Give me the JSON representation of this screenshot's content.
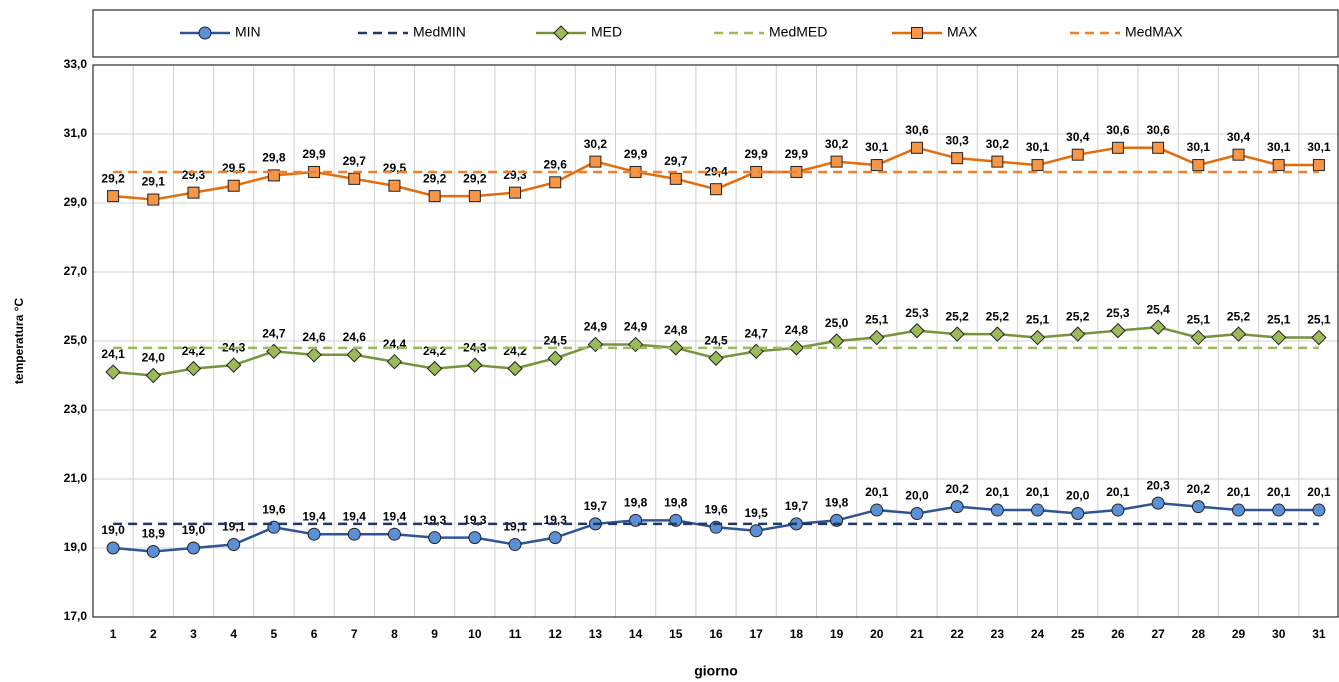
{
  "chart_data": {
    "type": "line",
    "x_label": "giorno",
    "y_label": "temperatura °C",
    "categories": [
      "1",
      "2",
      "3",
      "4",
      "5",
      "6",
      "7",
      "8",
      "9",
      "10",
      "11",
      "12",
      "13",
      "14",
      "15",
      "16",
      "17",
      "18",
      "19",
      "20",
      "21",
      "22",
      "23",
      "24",
      "25",
      "26",
      "27",
      "28",
      "29",
      "30",
      "31"
    ],
    "ylim": [
      17,
      33
    ],
    "yticks": [
      {
        "value": 17,
        "label": "17,0"
      },
      {
        "value": 19,
        "label": "19,0"
      },
      {
        "value": 21,
        "label": "21,0"
      },
      {
        "value": 23,
        "label": "23,0"
      },
      {
        "value": 25,
        "label": "25,0"
      },
      {
        "value": 27,
        "label": "27,0"
      },
      {
        "value": 29,
        "label": "29,0"
      },
      {
        "value": 31,
        "label": "31,0"
      },
      {
        "value": 33,
        "label": "33,0"
      }
    ],
    "grid": true,
    "legend": "top",
    "series": [
      {
        "name": "MIN",
        "color": "#2f5597",
        "marker": "circle",
        "marker_color": "#5b8fd6",
        "values": [
          19.0,
          18.9,
          19.0,
          19.1,
          19.6,
          19.4,
          19.4,
          19.4,
          19.3,
          19.3,
          19.1,
          19.3,
          19.7,
          19.8,
          19.8,
          19.6,
          19.5,
          19.7,
          19.8,
          20.1,
          20.0,
          20.2,
          20.1,
          20.1,
          20.0,
          20.1,
          20.3,
          20.2,
          20.1,
          20.1,
          20.1
        ],
        "value_labels": [
          "19,0",
          "18,9",
          "19,0",
          "19,1",
          "19,6",
          "19,4",
          "19,4",
          "19,4",
          "19,3",
          "19,3",
          "19,1",
          "19,3",
          "19,7",
          "19,8",
          "19,8",
          "19,6",
          "19,5",
          "19,7",
          "19,8",
          "20,1",
          "20,0",
          "20,2",
          "20,1",
          "20,1",
          "20,0",
          "20,1",
          "20,3",
          "20,2",
          "20,1",
          "20,1",
          "20,1"
        ]
      },
      {
        "name": "MedMIN",
        "color": "#1f3864",
        "dashed": true,
        "values": [
          19.7,
          19.7,
          19.7,
          19.7,
          19.7,
          19.7,
          19.7,
          19.7,
          19.7,
          19.7,
          19.7,
          19.7,
          19.7,
          19.7,
          19.7,
          19.7,
          19.7,
          19.7,
          19.7,
          19.7,
          19.7,
          19.7,
          19.7,
          19.7,
          19.7,
          19.7,
          19.7,
          19.7,
          19.7,
          19.7,
          19.7
        ]
      },
      {
        "name": "MED",
        "color": "#77933c",
        "marker": "diamond",
        "marker_color": "#9bbb59",
        "values": [
          24.1,
          24.0,
          24.2,
          24.3,
          24.7,
          24.6,
          24.6,
          24.4,
          24.2,
          24.3,
          24.2,
          24.5,
          24.9,
          24.9,
          24.8,
          24.5,
          24.7,
          24.8,
          25.0,
          25.1,
          25.3,
          25.2,
          25.2,
          25.1,
          25.2,
          25.3,
          25.4,
          25.1,
          25.2,
          25.1,
          25.1
        ],
        "value_labels": [
          "24,1",
          "24,0",
          "24,2",
          "24,3",
          "24,7",
          "24,6",
          "24,6",
          "24,4",
          "24,2",
          "24,3",
          "24,2",
          "24,5",
          "24,9",
          "24,9",
          "24,8",
          "24,5",
          "24,7",
          "24,8",
          "25,0",
          "25,1",
          "25,3",
          "25,2",
          "25,2",
          "25,1",
          "25,2",
          "25,3",
          "25,4",
          "25,1",
          "25,2",
          "25,1",
          "25,1"
        ]
      },
      {
        "name": "MedMED",
        "color": "#9bbb59",
        "dashed": true,
        "values": [
          24.8,
          24.8,
          24.8,
          24.8,
          24.8,
          24.8,
          24.8,
          24.8,
          24.8,
          24.8,
          24.8,
          24.8,
          24.8,
          24.8,
          24.8,
          24.8,
          24.8,
          24.8,
          24.8,
          24.8,
          24.8,
          24.8,
          24.8,
          24.8,
          24.8,
          24.8,
          24.8,
          24.8,
          24.8,
          24.8,
          24.8
        ]
      },
      {
        "name": "MAX",
        "color": "#e46c0a",
        "marker": "square",
        "marker_color": "#f79646",
        "values": [
          29.2,
          29.1,
          29.3,
          29.5,
          29.8,
          29.9,
          29.7,
          29.5,
          29.2,
          29.2,
          29.3,
          29.6,
          30.2,
          29.9,
          29.7,
          29.4,
          29.9,
          29.9,
          30.2,
          30.1,
          30.6,
          30.3,
          30.2,
          30.1,
          30.4,
          30.6,
          30.6,
          30.1,
          30.4,
          30.1,
          30.1
        ],
        "value_labels": [
          "29,2",
          "29,1",
          "29,3",
          "29,5",
          "29,8",
          "29,9",
          "29,7",
          "29,5",
          "29,2",
          "29,2",
          "29,3",
          "29,6",
          "30,2",
          "29,9",
          "29,7",
          "29,4",
          "29,9",
          "29,9",
          "30,2",
          "30,1",
          "30,6",
          "30,3",
          "30,2",
          "30,1",
          "30,4",
          "30,6",
          "30,6",
          "30,1",
          "30,4",
          "30,1",
          "30,1"
        ]
      },
      {
        "name": "MedMAX",
        "color": "#f08030",
        "dashed": true,
        "values": [
          29.9,
          29.9,
          29.9,
          29.9,
          29.9,
          29.9,
          29.9,
          29.9,
          29.9,
          29.9,
          29.9,
          29.9,
          29.9,
          29.9,
          29.9,
          29.9,
          29.9,
          29.9,
          29.9,
          29.9,
          29.9,
          29.9,
          29.9,
          29.9,
          29.9,
          29.9,
          29.9,
          29.9,
          29.9,
          29.9,
          29.9
        ]
      }
    ]
  }
}
